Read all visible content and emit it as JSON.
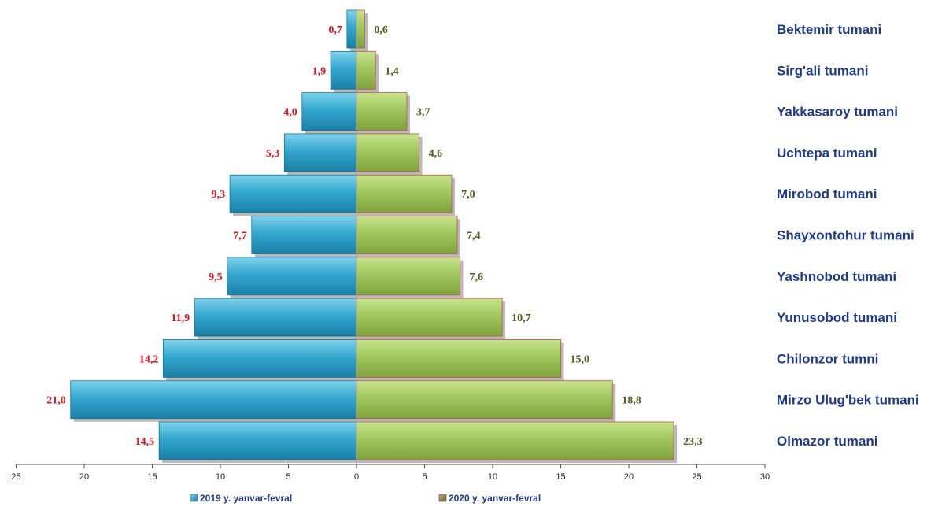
{
  "chart_data": {
    "type": "bar",
    "orientation": "horizontal",
    "layout": "butterfly",
    "categories": [
      "Bektemir tumani",
      "Sirg'ali tumani",
      "Yakkasaroy tumani",
      "Uchtepa tumani",
      "Mirobod tumani",
      "Shayxontohur tumani",
      "Yashnobod tumani",
      "Yunusobod tumani",
      "Chilonzor tumni",
      "Mirzo Ulug'bek tumani",
      "Olmazor tumani"
    ],
    "series": [
      {
        "name": "2019 y. yanvar-fevral",
        "side": "left",
        "color": "#2fa5cc",
        "values": [
          0.7,
          1.9,
          4.0,
          5.3,
          9.3,
          7.7,
          9.5,
          11.9,
          14.2,
          21.0,
          14.5
        ],
        "labels": [
          "0,7",
          "1,9",
          "4,0",
          "5,3",
          "9,3",
          "7,7",
          "9,5",
          "11,9",
          "14,2",
          "21,0",
          "14,5"
        ]
      },
      {
        "name": "2020 y. yanvar-fevral",
        "side": "right",
        "color": "#9fc25a",
        "values": [
          0.6,
          1.4,
          3.7,
          4.6,
          7.0,
          7.4,
          7.6,
          10.7,
          15.0,
          18.8,
          23.3
        ],
        "labels": [
          "0,6",
          "1,4",
          "3,7",
          "4,6",
          "7,0",
          "7,4",
          "7,6",
          "10,7",
          "15,0",
          "18,8",
          "23,3"
        ]
      }
    ],
    "x_range": [
      -25,
      30
    ],
    "x_ticks": [
      -25,
      -20,
      -15,
      -10,
      -5,
      0,
      5,
      10,
      15,
      20,
      25,
      30
    ],
    "x_tick_labels": [
      "25",
      "20",
      "15",
      "10",
      "5",
      "0",
      "5",
      "10",
      "15",
      "20",
      "25",
      "30"
    ],
    "grid": false,
    "legend": "bottom",
    "label_color_left": "#e0141e",
    "label_color_right": "#4d5e1e",
    "category_label_color": "#1f3a8a"
  }
}
